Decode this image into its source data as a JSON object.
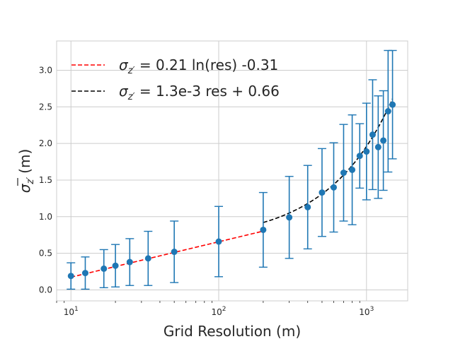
{
  "chart_data": {
    "type": "scatter",
    "xscale": "log",
    "xlabel": "Grid Resolution (m)",
    "ylabel_symbol": "σ",
    "ylabel_sub": "z′",
    "ylabel_unit": "(m)",
    "xlim": [
      8,
      1900
    ],
    "ylim": [
      -0.15,
      3.4
    ],
    "x_ticks": [
      {
        "value": 10,
        "base": "10",
        "exp": "1"
      },
      {
        "value": 100,
        "base": "10",
        "exp": "2"
      },
      {
        "value": 1000,
        "base": "10",
        "exp": "3"
      }
    ],
    "y_ticks": [
      0.0,
      0.5,
      1.0,
      1.5,
      2.0,
      2.5,
      3.0
    ],
    "y_tick_labels": [
      "0.0",
      "0.5",
      "1.0",
      "1.5",
      "2.0",
      "2.5",
      "3.0"
    ],
    "grid": true,
    "legend_position": "top-left",
    "points": [
      {
        "x": 10,
        "y": 0.19,
        "err": 0.18
      },
      {
        "x": 12.5,
        "y": 0.23,
        "err": 0.22
      },
      {
        "x": 16.7,
        "y": 0.29,
        "err": 0.26
      },
      {
        "x": 20,
        "y": 0.33,
        "err": 0.29
      },
      {
        "x": 25,
        "y": 0.38,
        "err": 0.32
      },
      {
        "x": 33.3,
        "y": 0.43,
        "err": 0.37
      },
      {
        "x": 50,
        "y": 0.52,
        "err": 0.42
      },
      {
        "x": 100,
        "y": 0.66,
        "err": 0.48
      },
      {
        "x": 200,
        "y": 0.82,
        "err": 0.51
      },
      {
        "x": 300,
        "y": 0.99,
        "err": 0.56
      },
      {
        "x": 400,
        "y": 1.13,
        "err": 0.57
      },
      {
        "x": 500,
        "y": 1.33,
        "err": 0.6
      },
      {
        "x": 600,
        "y": 1.4,
        "err": 0.61
      },
      {
        "x": 700,
        "y": 1.6,
        "err": 0.66
      },
      {
        "x": 800,
        "y": 1.64,
        "err": 0.75
      },
      {
        "x": 900,
        "y": 1.83,
        "err": 0.44
      },
      {
        "x": 1000,
        "y": 1.89,
        "err": 0.66
      },
      {
        "x": 1100,
        "y": 2.12,
        "err": 0.75
      },
      {
        "x": 1200,
        "y": 1.95,
        "err": 0.7
      },
      {
        "x": 1300,
        "y": 2.04,
        "err": 0.68
      },
      {
        "x": 1400,
        "y": 2.44,
        "err": 0.83
      },
      {
        "x": 1500,
        "y": 2.53,
        "err": 0.74
      }
    ],
    "fits": [
      {
        "color": "#ff0000",
        "x_range": [
          10,
          200
        ],
        "model": "log",
        "a": 0.21,
        "b": -0.31,
        "legend_prefix": "σ",
        "legend_sub": "z′",
        "legend_eq": " = 0.21 ln(res) -0.31"
      },
      {
        "color": "#000000",
        "x_range": [
          200,
          1500
        ],
        "model": "linear",
        "a": 0.0013,
        "b": 0.66,
        "legend_prefix": "σ",
        "legend_sub": "z′",
        "legend_eq": " = 1.3e-3 res + 0.66"
      }
    ],
    "marker_color": "#1f77b4"
  }
}
